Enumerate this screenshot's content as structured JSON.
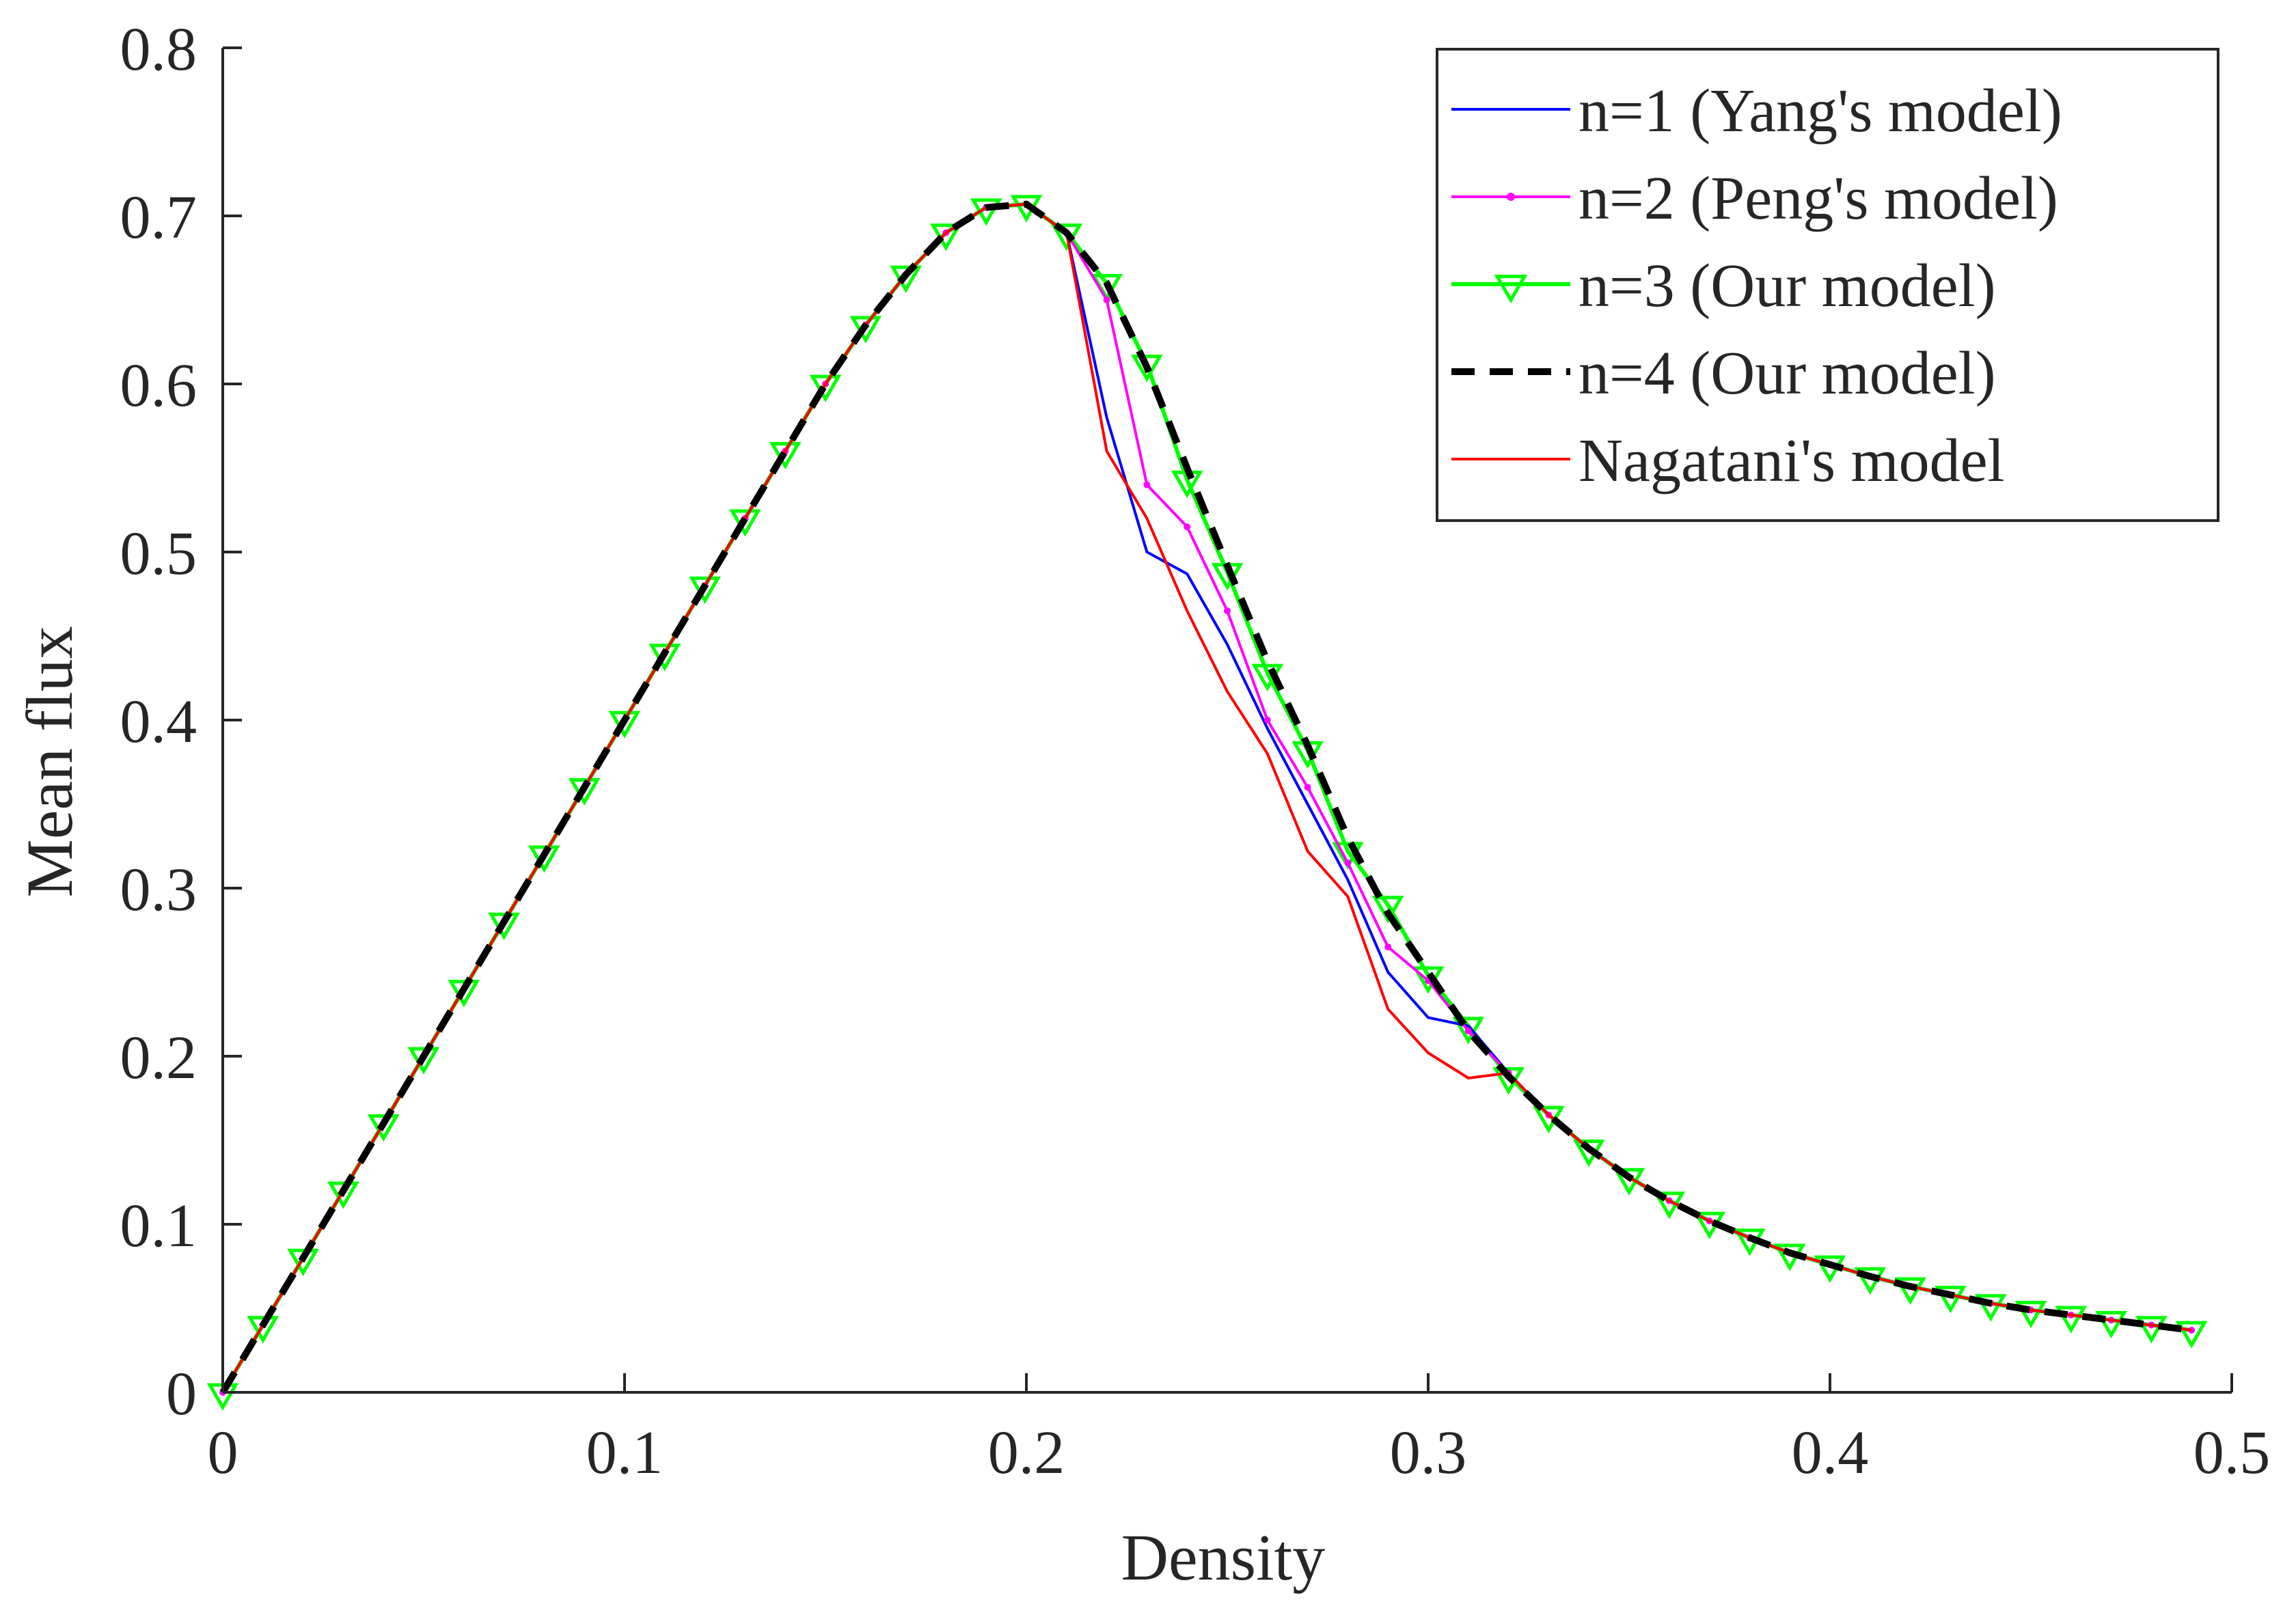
{
  "chart_data": {
    "type": "line",
    "title": "",
    "xlabel": "Density",
    "ylabel": "Mean flux",
    "xlim": [
      0,
      0.5
    ],
    "ylim": [
      0,
      0.8
    ],
    "xticks": [
      0,
      0.1,
      0.2,
      0.3,
      0.4,
      0.5
    ],
    "xtick_labels": [
      "0",
      "0.1",
      "0.2",
      "0.3",
      "0.4",
      "0.5"
    ],
    "yticks": [
      0,
      0.1,
      0.2,
      0.3,
      0.4,
      0.5,
      0.6,
      0.7,
      0.8
    ],
    "ytick_labels": [
      "0",
      "0.1",
      "0.2",
      "0.3",
      "0.4",
      "0.5",
      "0.6",
      "0.7",
      "0.8"
    ],
    "grid": false,
    "legend_position": "top-right",
    "x": [
      0,
      0.01,
      0.02,
      0.03,
      0.04,
      0.05,
      0.06,
      0.07,
      0.08,
      0.09,
      0.1,
      0.11,
      0.12,
      0.13,
      0.14,
      0.15,
      0.16,
      0.17,
      0.18,
      0.19,
      0.2,
      0.21,
      0.22,
      0.23,
      0.24,
      0.25,
      0.26,
      0.27,
      0.28,
      0.29,
      0.3,
      0.31,
      0.32,
      0.33,
      0.34,
      0.35,
      0.36,
      0.37,
      0.38,
      0.39,
      0.4,
      0.41,
      0.42,
      0.43,
      0.44,
      0.45,
      0.46,
      0.47,
      0.48,
      0.49
    ],
    "series": [
      {
        "name": "n=1 (Yang's model)",
        "color": "#0000ff",
        "style": "solid",
        "marker": "none",
        "values": [
          0,
          0.04,
          0.08,
          0.12,
          0.16,
          0.2,
          0.24,
          0.28,
          0.32,
          0.36,
          0.4,
          0.44,
          0.48,
          0.52,
          0.56,
          0.6,
          0.635,
          0.665,
          0.69,
          0.705,
          0.707,
          0.69,
          0.58,
          0.5,
          0.487,
          0.445,
          0.395,
          0.35,
          0.305,
          0.25,
          0.223,
          0.218,
          0.19,
          0.165,
          0.145,
          0.128,
          0.114,
          0.102,
          0.092,
          0.083,
          0.076,
          0.069,
          0.063,
          0.058,
          0.053,
          0.049,
          0.046,
          0.043,
          0.04,
          0.037
        ]
      },
      {
        "name": "n=2 (Peng's model)",
        "color": "#ff00ff",
        "style": "solid",
        "marker": "dot",
        "values": [
          0,
          0.04,
          0.08,
          0.12,
          0.16,
          0.2,
          0.24,
          0.28,
          0.32,
          0.36,
          0.4,
          0.44,
          0.48,
          0.52,
          0.56,
          0.6,
          0.635,
          0.665,
          0.69,
          0.705,
          0.707,
          0.69,
          0.65,
          0.54,
          0.515,
          0.465,
          0.4,
          0.36,
          0.315,
          0.265,
          0.245,
          0.215,
          0.19,
          0.165,
          0.145,
          0.128,
          0.114,
          0.102,
          0.092,
          0.083,
          0.076,
          0.069,
          0.063,
          0.058,
          0.053,
          0.049,
          0.046,
          0.043,
          0.04,
          0.037
        ]
      },
      {
        "name": "n=3 (Our model)",
        "color": "#00ff00",
        "style": "solid",
        "marker": "triangle-down",
        "values": [
          0,
          0.04,
          0.08,
          0.12,
          0.16,
          0.2,
          0.24,
          0.28,
          0.32,
          0.36,
          0.4,
          0.44,
          0.48,
          0.52,
          0.56,
          0.6,
          0.635,
          0.665,
          0.69,
          0.705,
          0.707,
          0.69,
          0.66,
          0.612,
          0.543,
          0.488,
          0.428,
          0.382,
          0.322,
          0.29,
          0.248,
          0.218,
          0.188,
          0.165,
          0.145,
          0.128,
          0.114,
          0.102,
          0.092,
          0.083,
          0.076,
          0.069,
          0.063,
          0.058,
          0.053,
          0.049,
          0.046,
          0.043,
          0.04,
          0.037
        ]
      },
      {
        "name": "n=4 (Our model)",
        "color": "#000000",
        "style": "dashed",
        "marker": "none",
        "values": [
          0,
          0.04,
          0.08,
          0.12,
          0.16,
          0.2,
          0.24,
          0.28,
          0.32,
          0.36,
          0.4,
          0.44,
          0.48,
          0.52,
          0.56,
          0.6,
          0.635,
          0.665,
          0.69,
          0.705,
          0.707,
          0.69,
          0.66,
          0.61,
          0.55,
          0.492,
          0.435,
          0.385,
          0.33,
          0.285,
          0.25,
          0.215,
          0.188,
          0.165,
          0.145,
          0.128,
          0.114,
          0.102,
          0.092,
          0.083,
          0.076,
          0.069,
          0.063,
          0.058,
          0.053,
          0.049,
          0.046,
          0.043,
          0.04,
          0.037
        ]
      },
      {
        "name": "Nagatani's model",
        "color": "#ff0000",
        "style": "solid",
        "marker": "none",
        "values": [
          0,
          0.04,
          0.08,
          0.12,
          0.16,
          0.2,
          0.24,
          0.28,
          0.32,
          0.36,
          0.4,
          0.44,
          0.48,
          0.52,
          0.56,
          0.6,
          0.635,
          0.665,
          0.69,
          0.705,
          0.707,
          0.69,
          0.56,
          0.52,
          0.465,
          0.417,
          0.38,
          0.322,
          0.295,
          0.228,
          0.202,
          0.187,
          0.19,
          0.165,
          0.145,
          0.128,
          0.114,
          0.102,
          0.092,
          0.083,
          0.076,
          0.069,
          0.063,
          0.058,
          0.053,
          0.049,
          0.046,
          0.043,
          0.04,
          0.037
        ]
      }
    ]
  }
}
